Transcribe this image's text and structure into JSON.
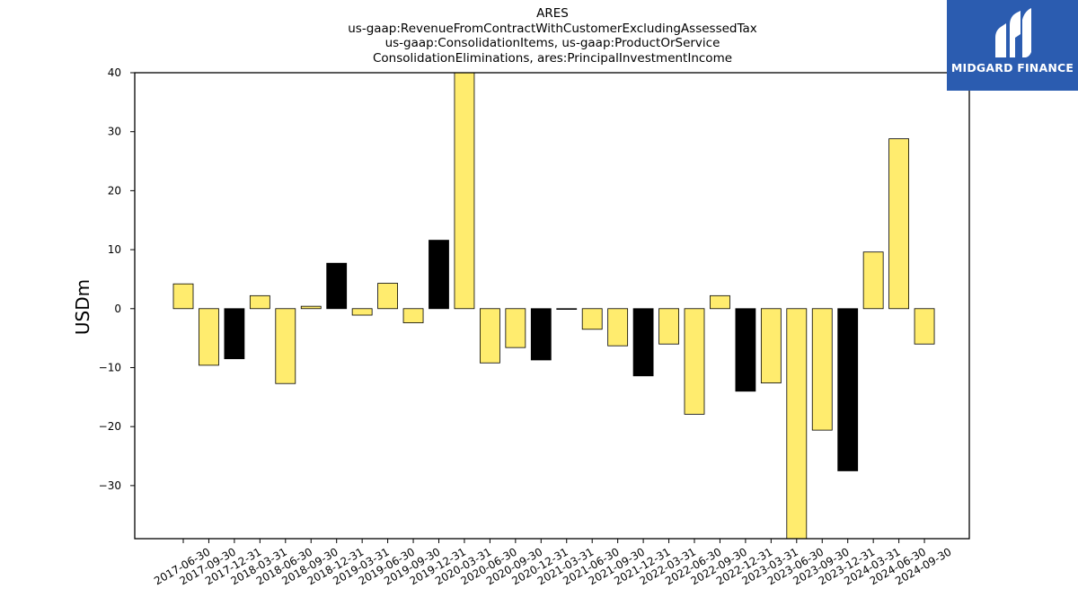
{
  "chart_data": {
    "type": "bar",
    "title_lines": [
      "ARES",
      "us-gaap:RevenueFromContractWithCustomerExcludingAssessedTax",
      "us-gaap:ConsolidationItems, us-gaap:ProductOrService",
      "ConsolidationEliminations, ares:PrincipalInvestmentIncome"
    ],
    "xlabel": "",
    "ylabel": "USDm",
    "ylim": [
      -39,
      40
    ],
    "yticks": [
      40,
      30,
      20,
      10,
      0,
      -10,
      -20,
      -30
    ],
    "ytick_labels": [
      "40",
      "30",
      "20",
      "10",
      "0",
      "−10",
      "−20",
      "−30"
    ],
    "grid": false,
    "categories": [
      "2017-06-30",
      "2017-09-30",
      "2017-12-31",
      "2018-03-31",
      "2018-06-30",
      "2018-09-30",
      "2018-12-31",
      "2019-03-31",
      "2019-06-30",
      "2019-09-30",
      "2019-12-31",
      "2020-03-31",
      "2020-06-30",
      "2020-09-30",
      "2020-12-31",
      "2021-03-31",
      "2021-06-30",
      "2021-09-30",
      "2021-12-31",
      "2022-03-31",
      "2022-06-30",
      "2022-09-30",
      "2022-12-31",
      "2023-03-31",
      "2023-06-30",
      "2023-09-30",
      "2023-12-31",
      "2024-03-31",
      "2024-06-30",
      "2024-09-30"
    ],
    "values": [
      4.2,
      -9.6,
      -8.5,
      2.2,
      -12.7,
      0.4,
      7.7,
      -1.1,
      4.3,
      -2.4,
      11.6,
      40.0,
      -9.2,
      -6.6,
      -8.7,
      -0.1,
      -3.5,
      -6.3,
      -11.4,
      -6.0,
      -17.9,
      2.2,
      -14.0,
      -12.6,
      -39.0,
      -20.6,
      -27.5,
      9.6,
      28.8,
      -6.0
    ],
    "bar_fill": [
      "#ffec6e",
      "#ffec6e",
      "#000000",
      "#ffec6e",
      "#ffec6e",
      "#ffec6e",
      "#000000",
      "#ffec6e",
      "#ffec6e",
      "#ffec6e",
      "#000000",
      "#ffec6e",
      "#ffec6e",
      "#ffec6e",
      "#000000",
      "#ffec6e",
      "#ffec6e",
      "#ffec6e",
      "#000000",
      "#ffec6e",
      "#ffec6e",
      "#ffec6e",
      "#000000",
      "#ffec6e",
      "#ffec6e",
      "#ffec6e",
      "#000000",
      "#ffec6e",
      "#ffec6e",
      "#ffec6e"
    ],
    "colors": {
      "yellow": "#ffec6e",
      "black": "#000000",
      "edge": "#000000"
    }
  },
  "logo": {
    "text": "MIDGARD FINANCE",
    "background": "#2b5cb0",
    "icon": "midgard-logo-mark"
  }
}
